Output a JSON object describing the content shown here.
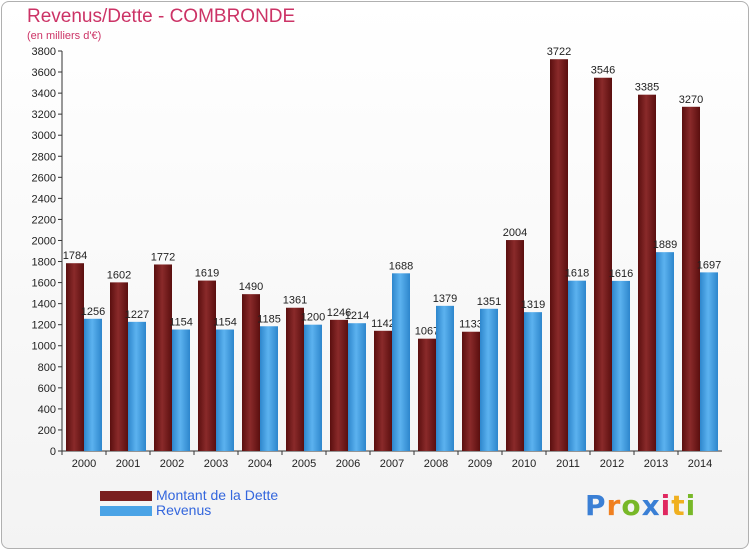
{
  "title": "Revenus/Dette - COMBRONDE",
  "subtitle": "(en milliers d'€)",
  "chart_data": {
    "type": "bar",
    "categories": [
      "2000",
      "2001",
      "2002",
      "2003",
      "2004",
      "2005",
      "2006",
      "2007",
      "2008",
      "2009",
      "2010",
      "2011",
      "2012",
      "2013",
      "2014"
    ],
    "series": [
      {
        "name": "Montant de la Dette",
        "color": "#7a1f1f",
        "values": [
          1784,
          1602,
          1772,
          1619,
          1490,
          1361,
          1246,
          1142,
          1067,
          1133,
          2004,
          3722,
          3546,
          3385,
          3270
        ]
      },
      {
        "name": "Revenus",
        "color": "#4aa3e6",
        "values": [
          1256,
          1227,
          1154,
          1154,
          1185,
          1200,
          1214,
          1688,
          1379,
          1351,
          1319,
          1618,
          1616,
          1889,
          1697
        ]
      }
    ],
    "ylim": [
      0,
      3800
    ],
    "ytick_step": 200,
    "grid": false,
    "legend": "bottom-left"
  },
  "logo": {
    "letters": [
      "P",
      "r",
      "o",
      "x",
      "i",
      "t",
      "i"
    ],
    "colors": [
      "#3a7fd5",
      "#f08020",
      "#78b828",
      "#3a7fd5",
      "#e02860",
      "#f0b020",
      "#78b828"
    ]
  }
}
